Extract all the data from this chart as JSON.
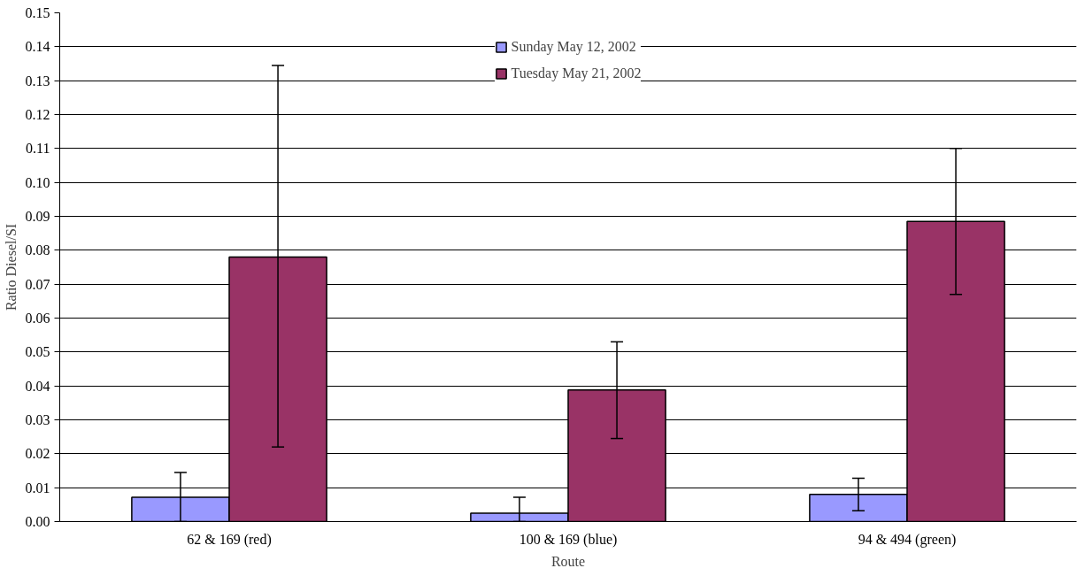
{
  "chart_data": {
    "type": "bar",
    "xlabel": "Route",
    "ylabel": "Ratio Diesel/SI",
    "categories": [
      "62 & 169 (red)",
      "100 & 169 (blue)",
      "94 & 494 (green)"
    ],
    "series": [
      {
        "name": "Sunday May 12, 2002",
        "color": "#9999ff",
        "values": [
          0.0072,
          0.0025,
          0.008
        ],
        "errors": [
          [
            0.0,
            0.0145
          ],
          [
            0.0,
            0.0072
          ],
          [
            0.0032,
            0.0128
          ]
        ]
      },
      {
        "name": "Tuesday May 21, 2002",
        "color": "#993366",
        "values": [
          0.078,
          0.0388,
          0.0885
        ],
        "errors": [
          [
            0.022,
            0.1345
          ],
          [
            0.0245,
            0.053
          ],
          [
            0.067,
            0.11
          ]
        ]
      }
    ],
    "ylim": [
      0,
      0.15
    ],
    "yticks": [
      {
        "value": 0,
        "label": "0.00"
      },
      {
        "value": 0.01,
        "label": "0.01"
      },
      {
        "value": 0.02,
        "label": "0.02"
      },
      {
        "value": 0.03,
        "label": "0.03"
      },
      {
        "value": 0.04,
        "label": "0.04"
      },
      {
        "value": 0.05,
        "label": "0.05"
      },
      {
        "value": 0.06,
        "label": "0.06"
      },
      {
        "value": 0.07,
        "label": "0.07"
      },
      {
        "value": 0.08,
        "label": "0.08"
      },
      {
        "value": 0.09,
        "label": "0.09"
      },
      {
        "value": 0.1,
        "label": "0.10"
      },
      {
        "value": 0.11,
        "label": "0.11"
      },
      {
        "value": 0.12,
        "label": "0.12"
      },
      {
        "value": 0.13,
        "label": "0.13"
      },
      {
        "value": 0.14,
        "label": "0.14"
      },
      {
        "value": 0.15,
        "label": "0.15"
      }
    ],
    "grid": "y",
    "legend": "top"
  }
}
